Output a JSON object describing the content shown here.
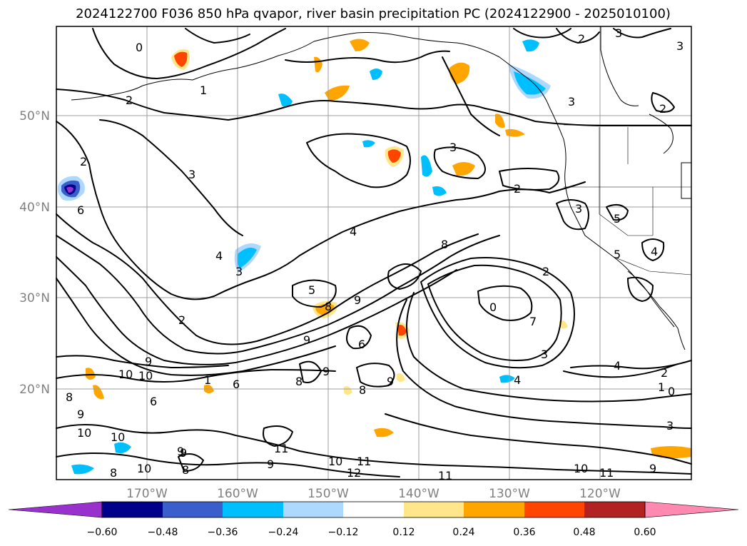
{
  "title": "2024122700 F036 850 hPa qvapor, river basin precipitation PC (2024122900 - 2025010100)",
  "lat_ticks": [
    "50°N",
    "40°N",
    "30°N",
    "20°N"
  ],
  "lon_ticks": [
    "170°W",
    "160°W",
    "150°W",
    "140°W",
    "130°W",
    "120°W"
  ],
  "colorbar": {
    "tick_labels": [
      "−0.60",
      "−0.48",
      "−0.36",
      "−0.24",
      "−0.12",
      "0.12",
      "0.24",
      "0.36",
      "0.48",
      "0.60"
    ],
    "colors": [
      "#9932cc",
      "#00008b",
      "#3a5fcd",
      "#00bfff",
      "#add8ff",
      "#ffffff",
      "#ffe68a",
      "#ffa500",
      "#ff4500",
      "#b22222",
      "#ff89b0"
    ]
  },
  "contour_labels": [
    "0",
    "2",
    "1",
    "2",
    "3",
    "3",
    "2",
    "3",
    "3",
    "3",
    "2",
    "2",
    "6",
    "3",
    "4",
    "4",
    "8",
    "5",
    "3",
    "5",
    "4",
    "5",
    "9",
    "2",
    "0",
    "2",
    "9",
    "7",
    "6",
    "3",
    "4",
    "4",
    "8",
    "2",
    "1",
    "0",
    "10",
    "9",
    "10",
    "1",
    "6",
    "8",
    "9",
    "9",
    "6",
    "8",
    "9",
    "8",
    "10",
    "9",
    "10",
    "11",
    "10",
    "11",
    "12",
    "11",
    "9",
    "10",
    "11",
    "9",
    "3",
    "8",
    "10",
    "9",
    "8"
  ]
}
